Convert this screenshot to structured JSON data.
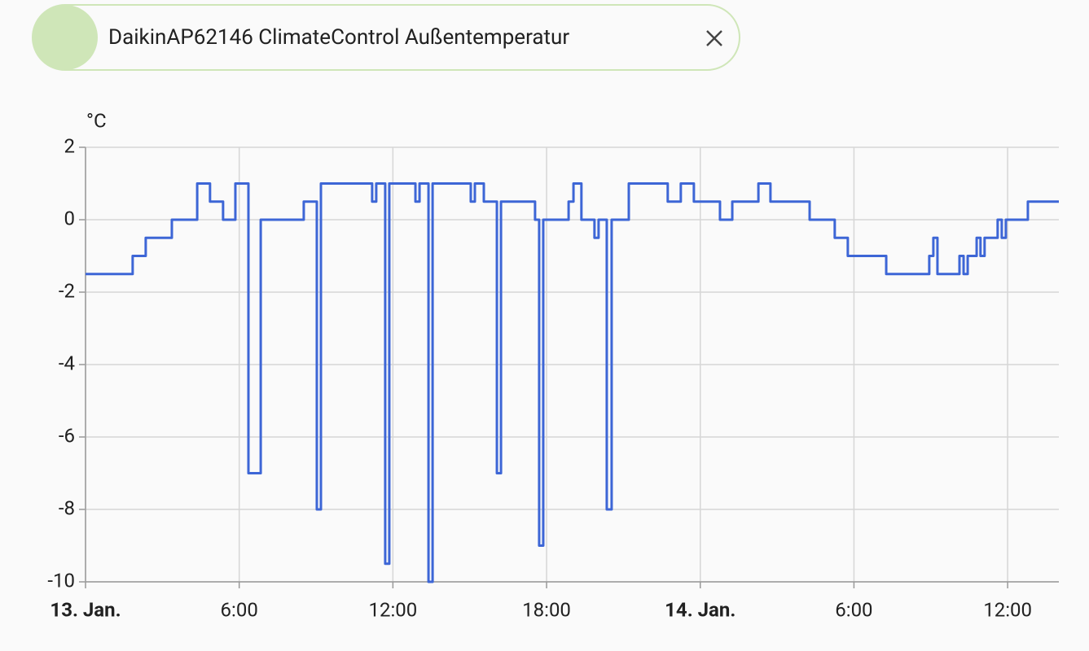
{
  "chart_data": {
    "type": "line",
    "step": true,
    "y_label": "°C",
    "legend_color": "#cfe6b8",
    "grid": true,
    "xlim": [
      0,
      38
    ],
    "xticks": [
      {
        "value": 0,
        "label": "13. Jan."
      },
      {
        "value": 6,
        "label": "6:00"
      },
      {
        "value": 12,
        "label": "12:00"
      },
      {
        "value": 18,
        "label": "18:00"
      },
      {
        "value": 24,
        "label": "14. Jan."
      },
      {
        "value": 30,
        "label": "6:00"
      },
      {
        "value": 36,
        "label": "12:00"
      }
    ],
    "ylim": [
      -10,
      2
    ],
    "yticks": [
      2,
      0,
      -2,
      -4,
      -6,
      -8,
      -10
    ],
    "x": [
      0,
      1.84,
      2.35,
      3.37,
      4.36,
      4.86,
      5.37,
      5.85,
      6.36,
      6.84,
      8.52,
      9.03,
      9.19,
      11.19,
      11.35,
      11.7,
      11.86,
      12.88,
      13.04,
      13.39,
      13.55,
      15.04,
      15.2,
      15.55,
      16.06,
      16.22,
      17.55,
      17.71,
      17.87,
      18.86,
      19.05,
      19.36,
      19.87,
      20.03,
      20.35,
      20.54,
      21.21,
      22.73,
      23.24,
      23.75,
      24.77,
      25.25,
      26.27,
      26.74,
      28.27,
      29.25,
      29.76,
      31.26,
      32.94,
      33.1,
      33.26,
      34.12,
      34.28,
      34.44,
      34.79,
      34.94,
      35.1,
      35.61,
      35.77,
      35.93,
      36.79,
      38
    ],
    "series": [
      {
        "name": "DaikinAP62146 ClimateControl Außentemperatur",
        "color": "#3d66d6",
        "values": [
          -1.5,
          -1,
          -0.5,
          0,
          1,
          0.5,
          0,
          1,
          -7,
          0,
          0.5,
          -8,
          1,
          0.5,
          1,
          -9.5,
          1,
          0.5,
          1,
          -10,
          1,
          0.5,
          1,
          0.5,
          -7,
          0.5,
          0,
          -9,
          0,
          0.5,
          1,
          0,
          -0.5,
          0,
          -8,
          0,
          1,
          0.5,
          1,
          0.5,
          0,
          0.5,
          1,
          0.5,
          0,
          -0.5,
          -1,
          -1.5,
          -1,
          -0.5,
          -1.5,
          -1,
          -1.5,
          -1,
          -0.5,
          -1,
          -0.5,
          0,
          -0.5,
          0,
          0.5,
          0.5
        ]
      }
    ]
  }
}
